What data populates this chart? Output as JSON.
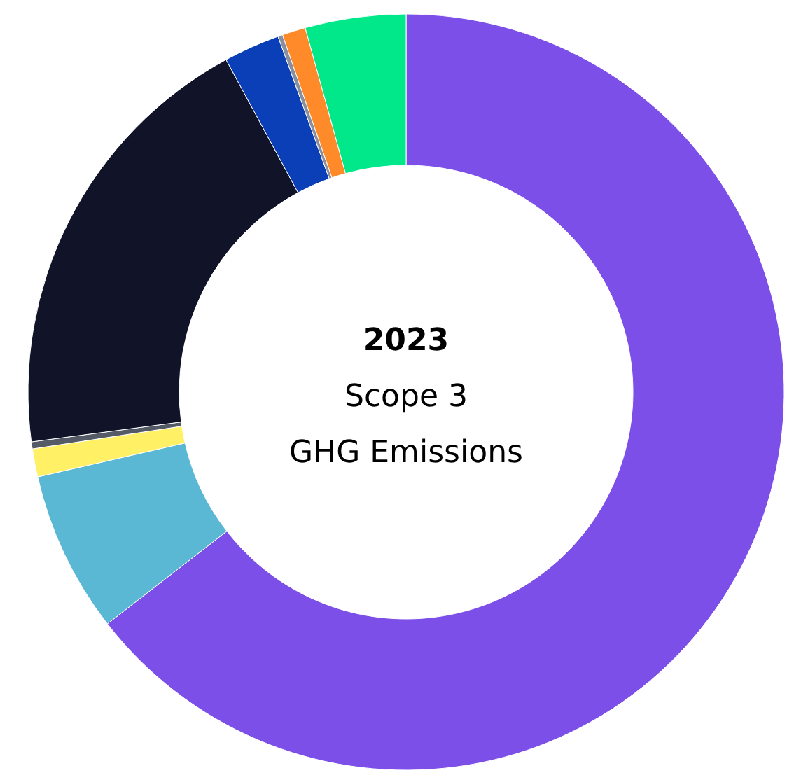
{
  "chart_data": {
    "type": "donut",
    "title": "2023",
    "subtitle": "Scope 3\nGHG Emissions",
    "categories": [
      null,
      null,
      null,
      null,
      null,
      null,
      null,
      null,
      null
    ],
    "values": [
      64.5,
      6.9,
      1.2,
      0.3,
      19.2,
      2.4,
      0.2,
      1.0,
      4.3
    ],
    "colors": [
      "#7b4fe8",
      "#5ab8d4",
      "#fff066",
      "#555b66",
      "#111329",
      "#0a3fb8",
      "#8a8fa0",
      "#ff8a2a",
      "#00e88a"
    ],
    "legend": false
  }
}
